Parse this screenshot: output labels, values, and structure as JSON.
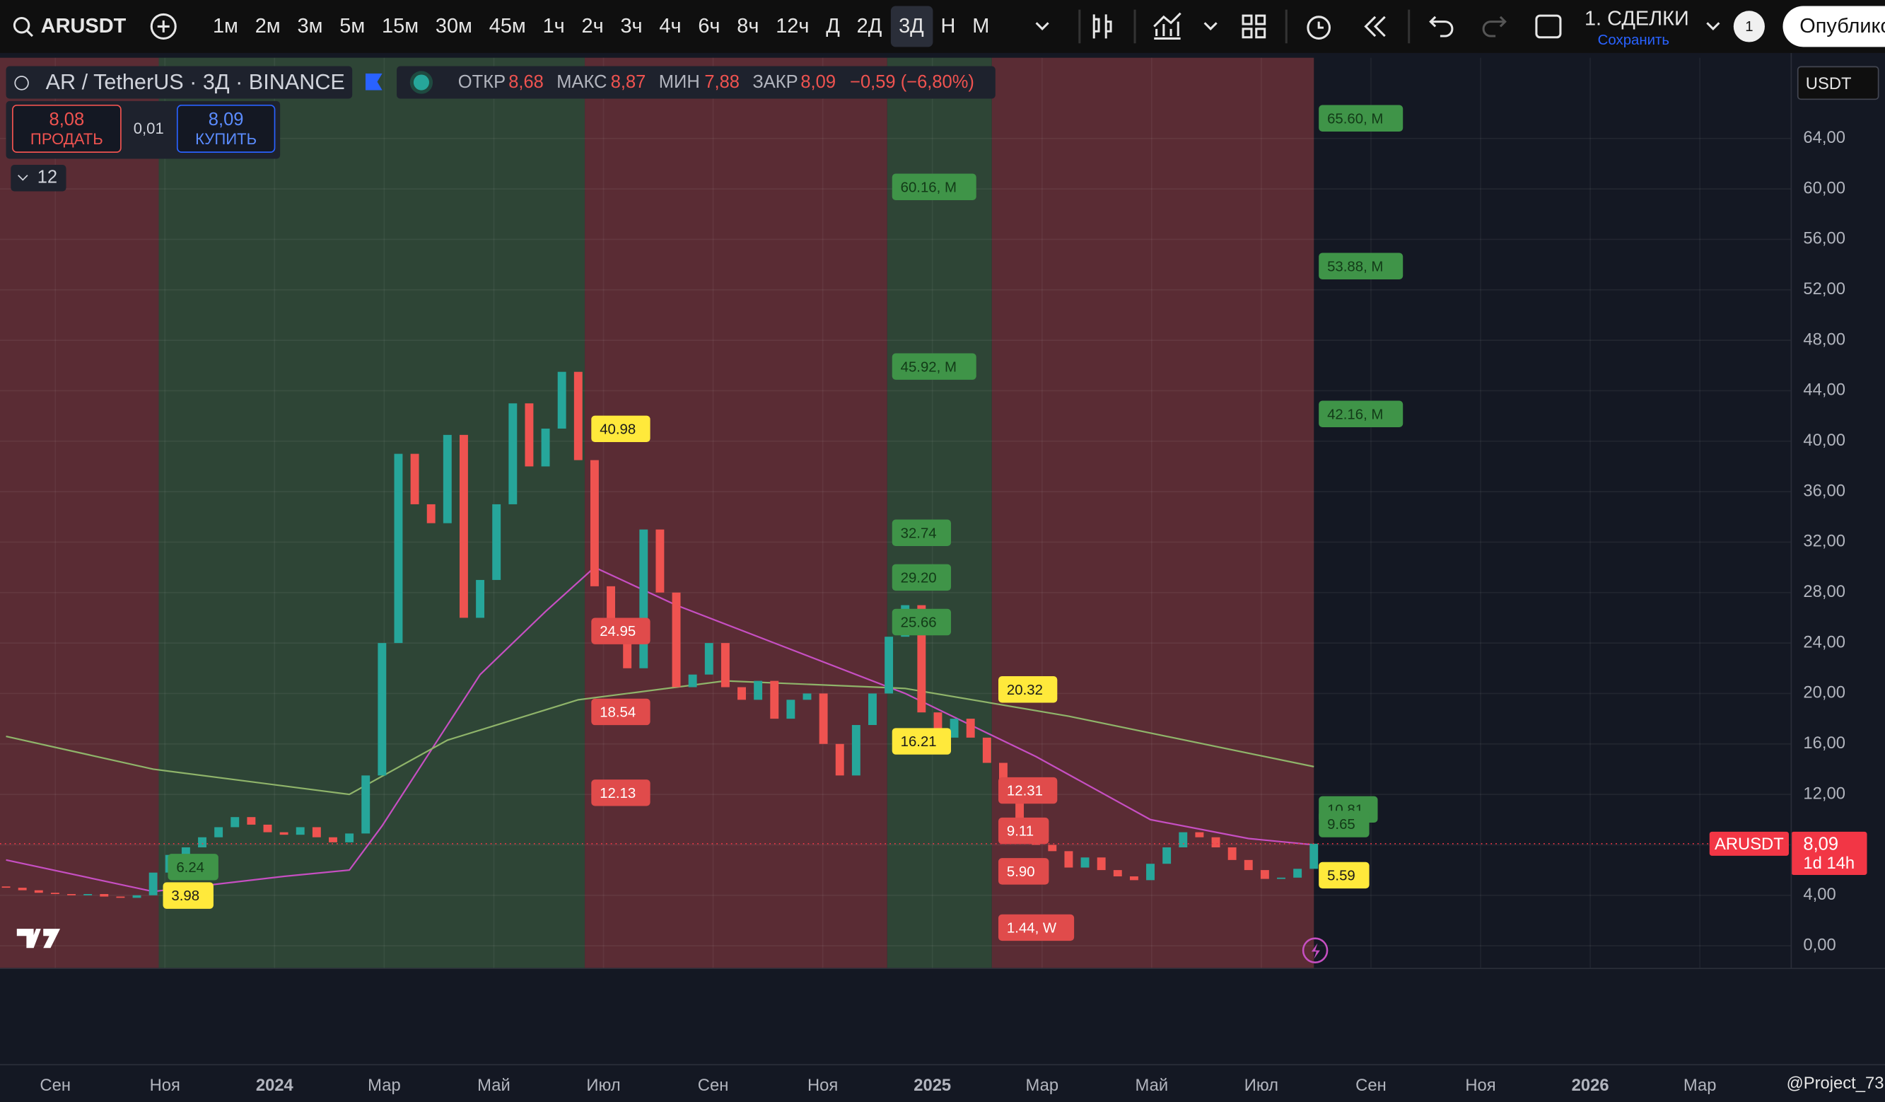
{
  "toolbar": {
    "symbol": "ARUSDT",
    "intervals": [
      "1м",
      "2м",
      "3м",
      "5м",
      "15м",
      "30м",
      "45м",
      "1ч",
      "2ч",
      "3ч",
      "4ч",
      "6ч",
      "8ч",
      "12ч",
      "Д",
      "2Д",
      "3Д",
      "Н",
      "М"
    ],
    "active_interval": 16,
    "layout_name": "1. СДЕЛКИ",
    "layout_sub": "Сохранить",
    "badge": "1",
    "publish": "Опублико"
  },
  "legend": {
    "title": "AR / TetherUS · 3Д · BINANCE",
    "open_label": "ОТКР",
    "open": "8,68",
    "high_label": "МАКС",
    "high": "8,87",
    "low_label": "МИН",
    "low": "7,88",
    "close_label": "ЗАКР",
    "close": "8,09",
    "change": "−0,59 (−6,80%)"
  },
  "trade": {
    "sell_price": "8,08",
    "sell_label": "ПРОДАТЬ",
    "spread": "0,01",
    "buy_price": "8,09",
    "buy_label": "КУПИТЬ"
  },
  "indicators_count": "12",
  "currency": "USDT",
  "watermark": "@Project_73",
  "chart_data": {
    "type": "candlestick",
    "first_open": 4.7,
    "closes": [
      4.6,
      4.4,
      4.2,
      4.1,
      4.0,
      4.1,
      3.9,
      3.8,
      4.0,
      5.8,
      7.2,
      7.8,
      8.6,
      9.4,
      10.2,
      9.6,
      9.0,
      8.8,
      9.4,
      8.6,
      8.2,
      8.9,
      13.5,
      24.0,
      39.0,
      35.0,
      33.5,
      40.5,
      26.0,
      29.0,
      35.0,
      43.0,
      38.0,
      41.0,
      45.5,
      38.5,
      28.5,
      24.5,
      22.0,
      33.0,
      28.0,
      20.5,
      21.5,
      24.0,
      20.5,
      19.5,
      21.0,
      18.0,
      19.5,
      20.0,
      16.0,
      13.5,
      17.5,
      20.0,
      24.5,
      27.0,
      18.5,
      16.5,
      18.0,
      16.5,
      14.5,
      13.0,
      9.5,
      8.0,
      7.5,
      6.2,
      7.0,
      6.0,
      5.5,
      5.2,
      6.5,
      7.8,
      9.0,
      8.6,
      7.8,
      6.8,
      6.0,
      5.3,
      5.4,
      6.1,
      8.09
    ],
    "up_color": "#26a69a",
    "down_color": "#ef5350",
    "xlim": [
      -0.37,
      109.2
    ],
    "ylim": [
      -1.8,
      70.4
    ],
    "yticks": [
      {
        "value": 0,
        "label": "0,00"
      },
      {
        "value": 4,
        "label": "4,00"
      },
      {
        "value": 8,
        "label": "8,00"
      },
      {
        "value": 12,
        "label": "12,00"
      },
      {
        "value": 16,
        "label": "16,00"
      },
      {
        "value": 20,
        "label": "20,00"
      },
      {
        "value": 24,
        "label": "24,00"
      },
      {
        "value": 28,
        "label": "28,00"
      },
      {
        "value": 32,
        "label": "32,00"
      },
      {
        "value": 36,
        "label": "36,00"
      },
      {
        "value": 40,
        "label": "40,00"
      },
      {
        "value": 44,
        "label": "44,00"
      },
      {
        "value": 48,
        "label": "48,00"
      },
      {
        "value": 52,
        "label": "52,00"
      },
      {
        "value": 56,
        "label": "56,00"
      },
      {
        "value": 60,
        "label": "60,00"
      },
      {
        "value": 64,
        "label": "64,00"
      }
    ],
    "grid": true,
    "time_labels": [
      "Сен",
      "Ноя",
      "2024",
      "Мар",
      "Май",
      "Июл",
      "Сен",
      "Ноя",
      "2025",
      "Мар",
      "Май",
      "Июл",
      "Сен",
      "Ноя",
      "2026",
      "Мар"
    ],
    "zones": [
      {
        "from": -0.37,
        "to": 9.34,
        "color": "#5a2c34"
      },
      {
        "from": 9.34,
        "to": 35.4,
        "color": "#2e4536"
      },
      {
        "from": 35.4,
        "to": 53.9,
        "color": "#5a2c34"
      },
      {
        "from": 53.9,
        "to": 60.3,
        "color": "#2e4536"
      },
      {
        "from": 60.3,
        "to": 80,
        "color": "#5a2c34"
      }
    ],
    "moving_averages": [
      {
        "color": "#c64fc2",
        "x": [
          0,
          9,
          17,
          21,
          23,
          26,
          29,
          33,
          36,
          41,
          47,
          55,
          63,
          70,
          76,
          80
        ],
        "values": [
          6.8,
          4.3,
          5.5,
          6.0,
          9.5,
          15.5,
          21.5,
          26.5,
          30.0,
          27.0,
          24.0,
          20.0,
          15.0,
          10.0,
          8.5,
          8.0
        ]
      },
      {
        "color": "#8fb46a",
        "x": [
          0,
          9,
          21,
          27,
          35,
          44,
          55,
          65,
          80
        ],
        "values": [
          16.6,
          14.0,
          12.0,
          16.3,
          19.5,
          21.0,
          20.4,
          18.2,
          14.2
        ]
      }
    ],
    "level_styles": {
      "green": {
        "fill": "#3f9448",
        "text": "#123a17"
      },
      "red": {
        "fill": "#e04b4b",
        "text": "#ffffff"
      },
      "yellow": {
        "fill": "#ffe93b",
        "text": "#1a1a1a"
      }
    },
    "levels": [
      {
        "value": 65.6,
        "label": "65.60, M",
        "kind": "green",
        "at": 80.3
      },
      {
        "value": 60.16,
        "label": "60.16, M",
        "kind": "green",
        "at": 54.2
      },
      {
        "value": 53.88,
        "label": "53.88, M",
        "kind": "green",
        "at": 80.3
      },
      {
        "value": 45.92,
        "label": "45.92, M",
        "kind": "green",
        "at": 54.2
      },
      {
        "value": 42.16,
        "label": "42.16, M",
        "kind": "green",
        "at": 80.3
      },
      {
        "value": 40.98,
        "label": "40.98",
        "kind": "yellow",
        "at": 35.8
      },
      {
        "value": 32.74,
        "label": "32.74",
        "kind": "green",
        "at": 54.2
      },
      {
        "value": 29.2,
        "label": "29.20",
        "kind": "green",
        "at": 54.2
      },
      {
        "value": 25.66,
        "label": "25.66",
        "kind": "green",
        "at": 54.2
      },
      {
        "value": 24.95,
        "label": "24.95",
        "kind": "red",
        "at": 35.8
      },
      {
        "value": 20.32,
        "label": "20.32",
        "kind": "yellow",
        "at": 60.7
      },
      {
        "value": 18.54,
        "label": "18.54",
        "kind": "red",
        "at": 35.8
      },
      {
        "value": 16.21,
        "label": "16.21",
        "kind": "yellow",
        "at": 54.2
      },
      {
        "value": 12.13,
        "label": "12.13",
        "kind": "red",
        "at": 35.8
      },
      {
        "value": 12.31,
        "label": "12.31",
        "kind": "red",
        "at": 60.7
      },
      {
        "value": 10.81,
        "label": "10.81",
        "kind": "green",
        "at": 80.3
      },
      {
        "value": 9.65,
        "label": "9.65",
        "kind": "green",
        "at": 80.3
      },
      {
        "value": 9.11,
        "label": "9.11",
        "kind": "red",
        "at": 60.7
      },
      {
        "value": 6.24,
        "label": "6.24",
        "kind": "green",
        "at": 9.9
      },
      {
        "value": 5.9,
        "label": "5.90",
        "kind": "red",
        "at": 60.7
      },
      {
        "value": 5.59,
        "label": "5.59",
        "kind": "yellow",
        "at": 80.3
      },
      {
        "value": 3.98,
        "label": "3.98",
        "kind": "yellow",
        "at": 9.6
      },
      {
        "value": 1.44,
        "label": "1.44, W",
        "kind": "red",
        "at": 60.7
      }
    ],
    "last_price": {
      "symbol": "ARUSDT",
      "value": 8.09,
      "label": "8,09",
      "countdown": "1d 14h",
      "color": "#f23645"
    }
  }
}
